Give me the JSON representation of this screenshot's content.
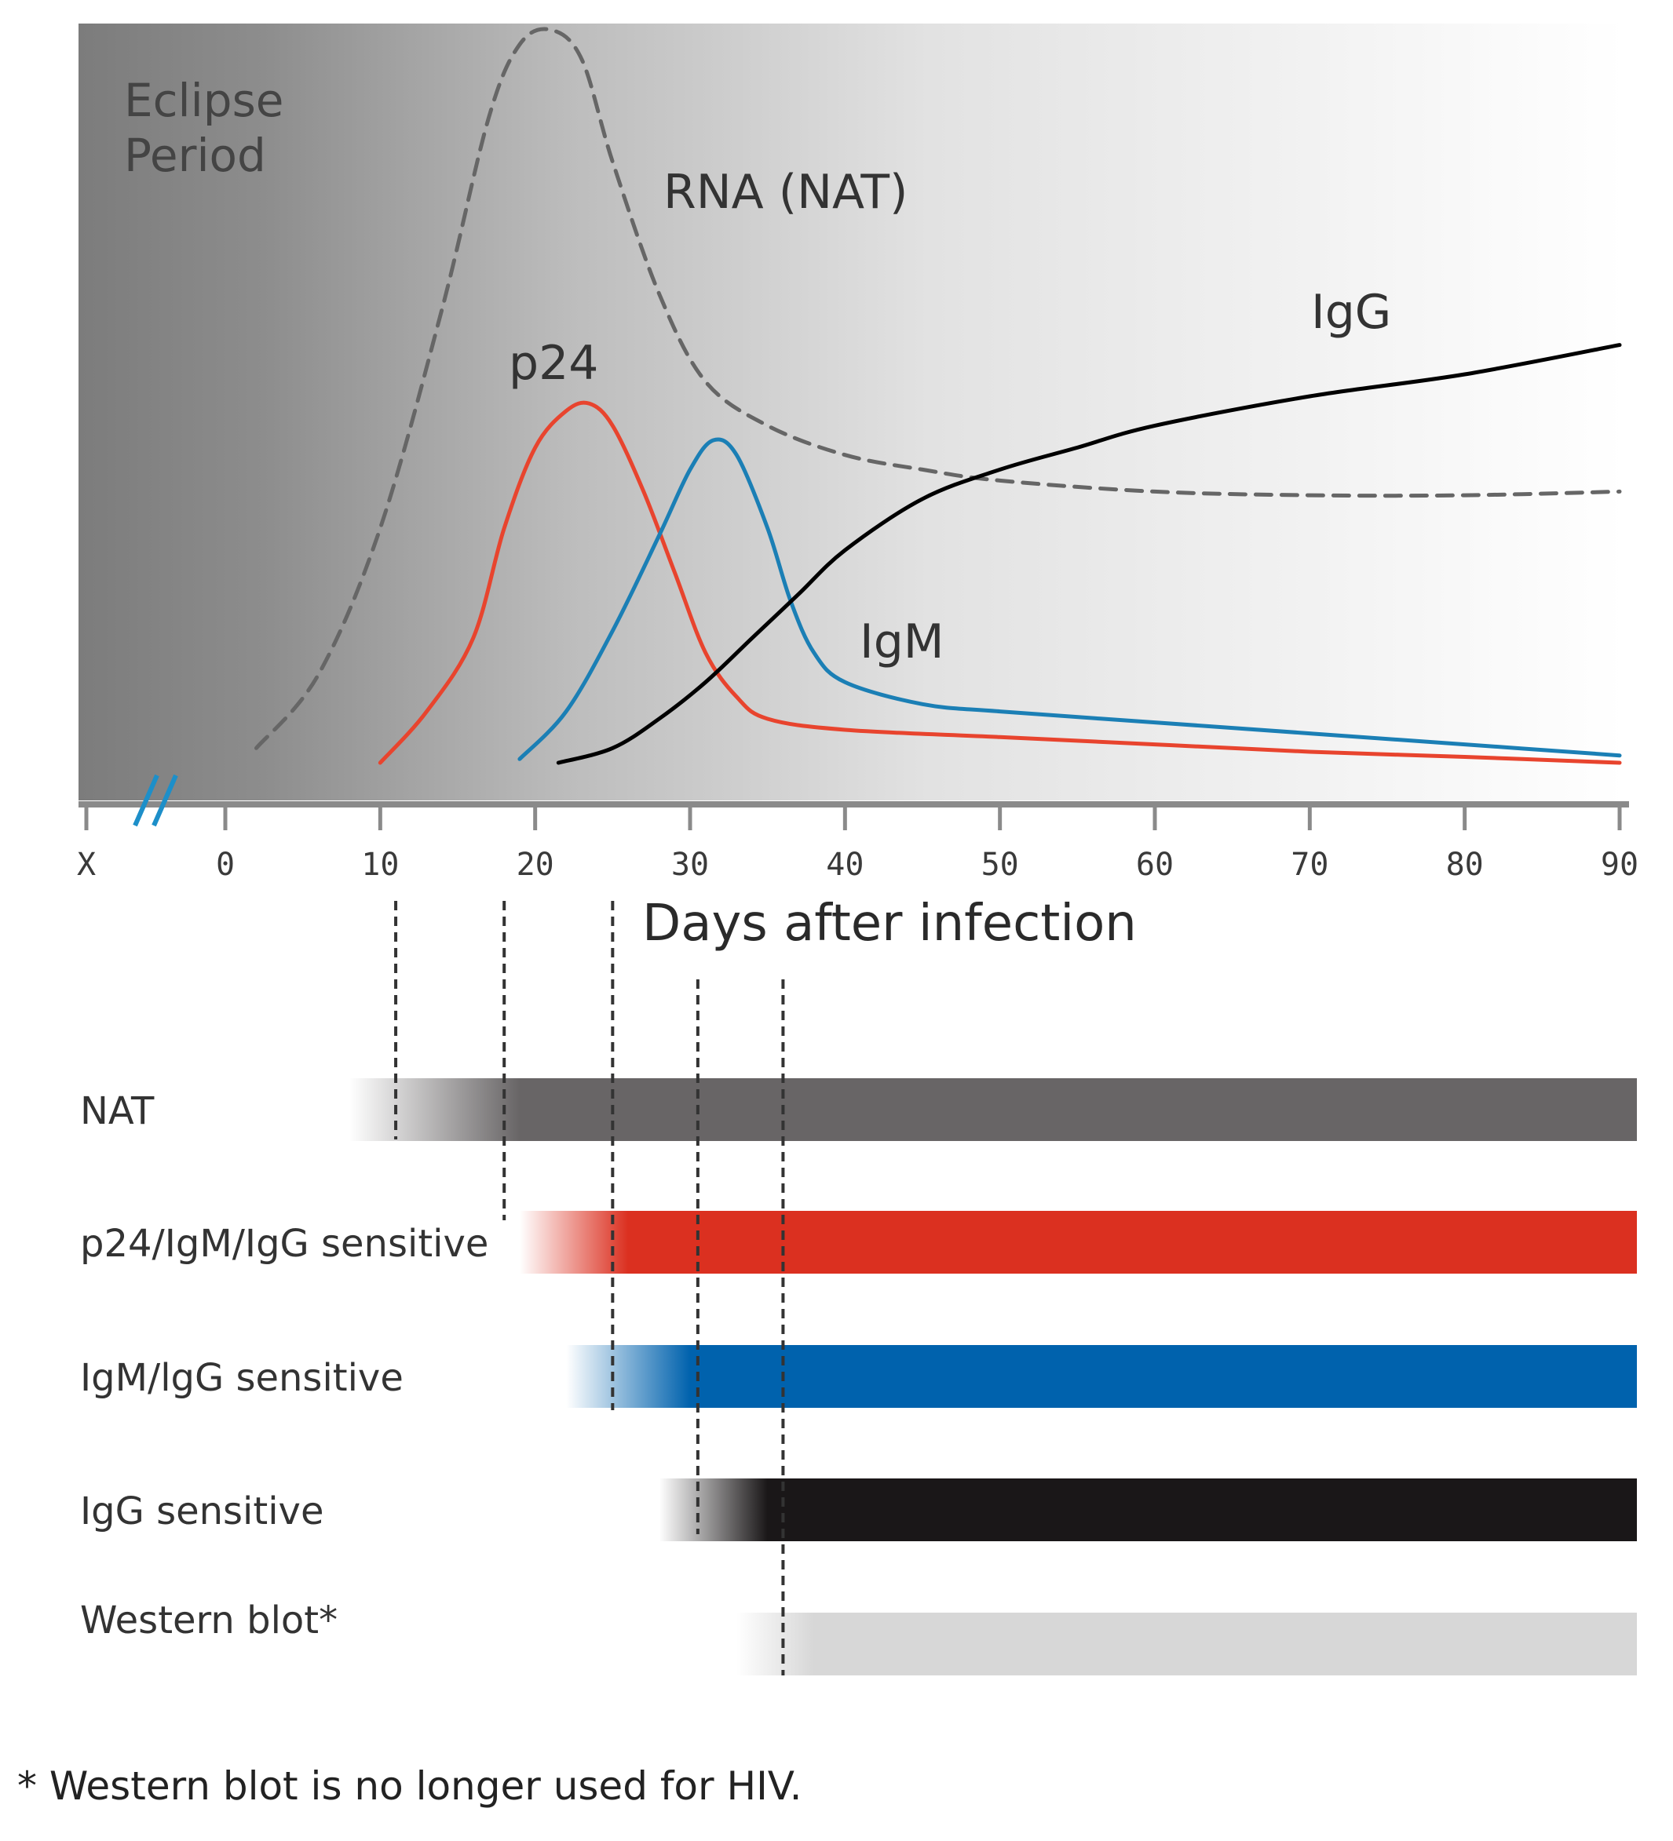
{
  "chart_data": {
    "type": "line",
    "title": "",
    "xlabel": "Days after infection",
    "ylabel": "",
    "x_tick_labels": [
      "X",
      "0",
      "10",
      "20",
      "30",
      "40",
      "50",
      "60",
      "70",
      "80",
      "90"
    ],
    "x_ticks": [
      0,
      10,
      20,
      30,
      40,
      50,
      60,
      70,
      80,
      90
    ],
    "xlim": [
      0,
      90
    ],
    "axis_break": "//",
    "shaded_region": "Eclipse Period",
    "grid": false,
    "legend": "none (curves labeled directly)",
    "series": [
      {
        "name": "RNA (NAT)",
        "style": "dashed",
        "color": "#666666",
        "points": [
          [
            2,
            0.02
          ],
          [
            6,
            0.12
          ],
          [
            10,
            0.32
          ],
          [
            14,
            0.62
          ],
          [
            17,
            0.88
          ],
          [
            19,
            0.98
          ],
          [
            21,
            1.0
          ],
          [
            23,
            0.96
          ],
          [
            25,
            0.82
          ],
          [
            28,
            0.64
          ],
          [
            31,
            0.52
          ],
          [
            35,
            0.46
          ],
          [
            40,
            0.42
          ],
          [
            45,
            0.4
          ],
          [
            50,
            0.385
          ],
          [
            60,
            0.37
          ],
          [
            70,
            0.365
          ],
          [
            80,
            0.365
          ],
          [
            90,
            0.37
          ]
        ]
      },
      {
        "name": "p24",
        "style": "solid",
        "color": "#e8442e",
        "points": [
          [
            10,
            0.0
          ],
          [
            13,
            0.07
          ],
          [
            16,
            0.17
          ],
          [
            18,
            0.32
          ],
          [
            20,
            0.43
          ],
          [
            22,
            0.48
          ],
          [
            23.5,
            0.49
          ],
          [
            25,
            0.46
          ],
          [
            27,
            0.37
          ],
          [
            29,
            0.26
          ],
          [
            31,
            0.15
          ],
          [
            33,
            0.09
          ],
          [
            35,
            0.06
          ],
          [
            40,
            0.045
          ],
          [
            50,
            0.035
          ],
          [
            60,
            0.025
          ],
          [
            70,
            0.015
          ],
          [
            80,
            0.008
          ],
          [
            90,
            0.0
          ]
        ]
      },
      {
        "name": "IgM",
        "style": "solid",
        "color": "#1b7fb5",
        "points": [
          [
            19,
            0.005
          ],
          [
            22,
            0.07
          ],
          [
            25,
            0.18
          ],
          [
            28,
            0.31
          ],
          [
            30,
            0.4
          ],
          [
            31.5,
            0.44
          ],
          [
            33,
            0.42
          ],
          [
            35,
            0.32
          ],
          [
            36.5,
            0.22
          ],
          [
            38,
            0.15
          ],
          [
            40,
            0.11
          ],
          [
            45,
            0.08
          ],
          [
            50,
            0.07
          ],
          [
            60,
            0.055
          ],
          [
            70,
            0.04
          ],
          [
            80,
            0.025
          ],
          [
            90,
            0.01
          ]
        ]
      },
      {
        "name": "IgG",
        "style": "solid",
        "color": "#000000",
        "points": [
          [
            21.5,
            0.0
          ],
          [
            25,
            0.02
          ],
          [
            28,
            0.06
          ],
          [
            31,
            0.11
          ],
          [
            34,
            0.17
          ],
          [
            37,
            0.23
          ],
          [
            40,
            0.29
          ],
          [
            45,
            0.36
          ],
          [
            50,
            0.4
          ],
          [
            55,
            0.43
          ],
          [
            60,
            0.46
          ],
          [
            70,
            0.5
          ],
          [
            80,
            0.53
          ],
          [
            90,
            0.57
          ]
        ]
      }
    ],
    "detection_rows": [
      {
        "label": "NAT",
        "color": "#686566",
        "start_day": 8,
        "solid_day": 19
      },
      {
        "label": "p24/IgM/IgG sensitive",
        "color": "#db3020",
        "start_day": 19,
        "solid_day": 26
      },
      {
        "label": "IgM/lgG sensitive",
        "color": "#0062ad",
        "start_day": 22,
        "solid_day": 30
      },
      {
        "label": "IgG sensitive",
        "color": "#1a1718",
        "start_day": 28,
        "solid_day": 35
      },
      {
        "label": "Western blot*",
        "color": "#d7d7d7",
        "start_day": 33,
        "solid_day": 38
      }
    ],
    "marker_lines_days": [
      11,
      18,
      25,
      30.5,
      36
    ]
  },
  "labels": {
    "eclipse_line1": "Eclipse",
    "eclipse_line2": "Period",
    "rna": "RNA (NAT)",
    "p24": "p24",
    "igm": "IgM",
    "igg": "IgG"
  },
  "footnote": "* Western blot is no longer used for HIV.",
  "colors": {
    "nat_bar": "#686566",
    "p24_bar": "#db3020",
    "igm_bar": "#0062ad",
    "igg_bar": "#1a1718",
    "wb_bar": "#d7d7d7",
    "break_marks": "#1d8fc9"
  }
}
